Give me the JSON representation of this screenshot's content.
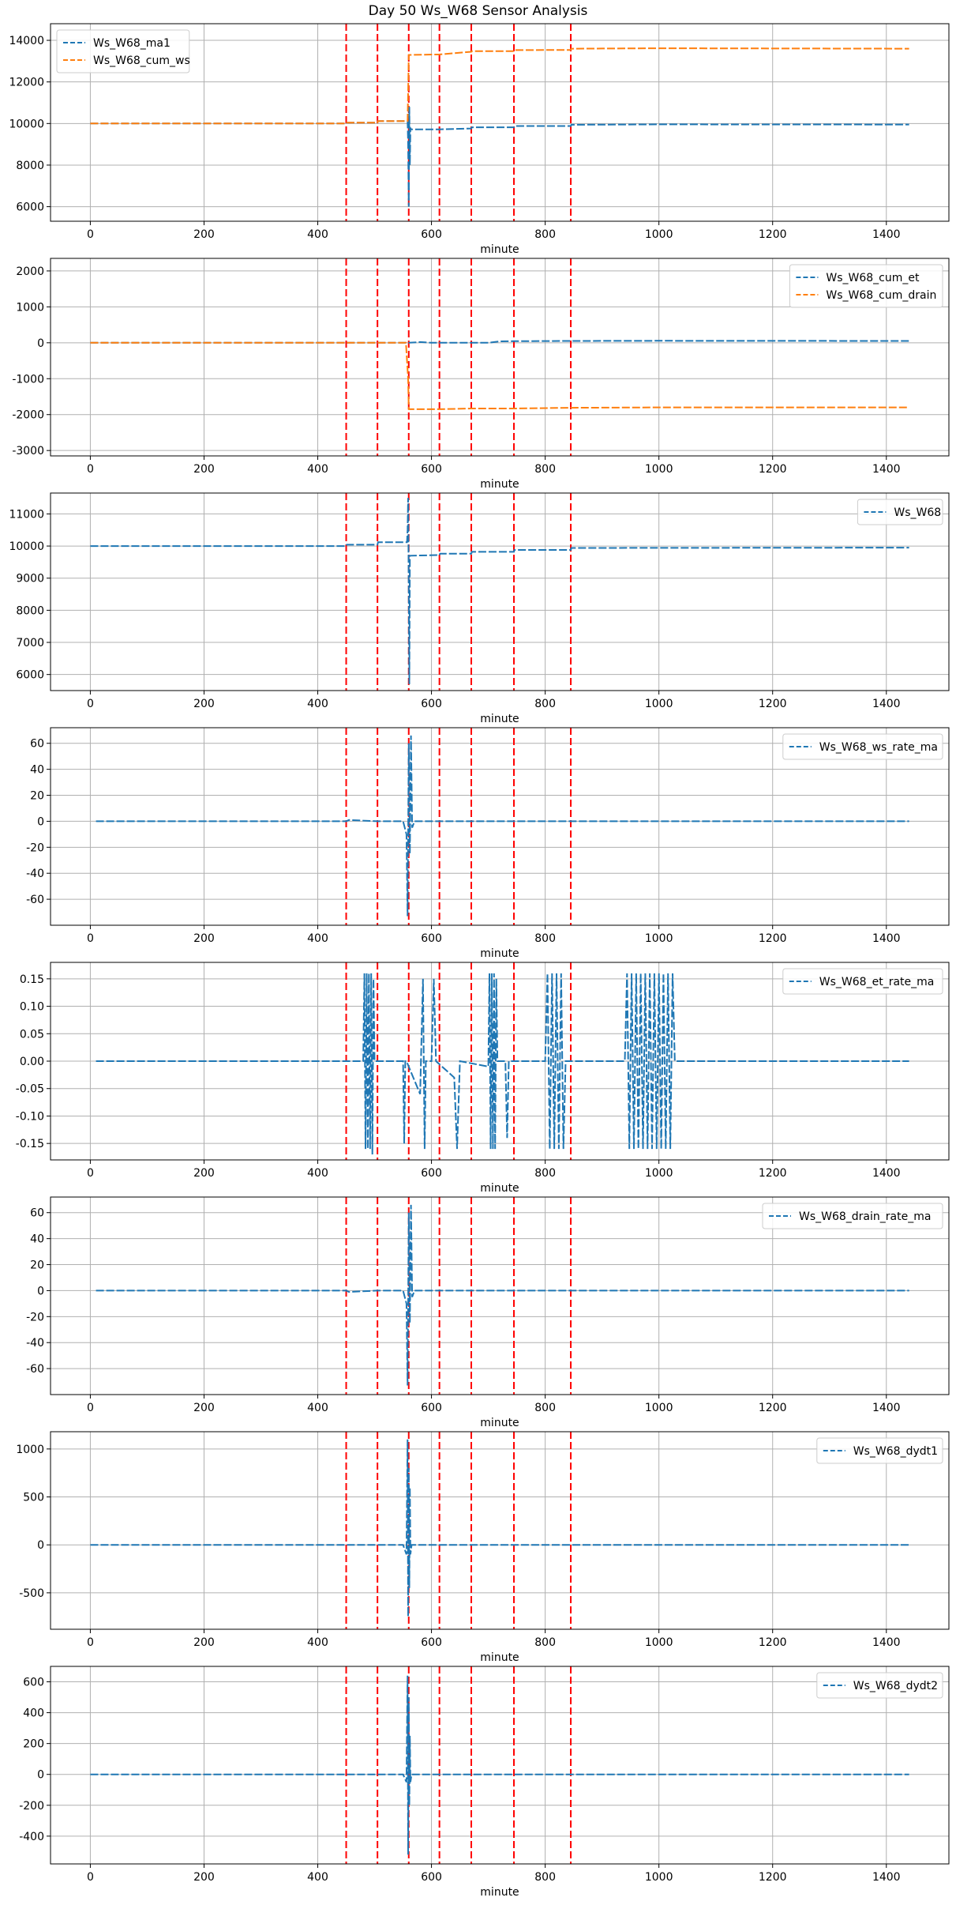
{
  "figure": {
    "title": "Day 50 Ws_W68 Sensor Analysis"
  },
  "colors": {
    "blue": "#1f77b4",
    "orange": "#ff7f0e",
    "event_line": "#ff0000",
    "grid": "#b0b0b0"
  },
  "chart_data": [
    {
      "type": "line",
      "xlabel": "minute",
      "xlim": [
        -70,
        1510
      ],
      "ylim": [
        5300,
        14800
      ],
      "xticks": [
        0,
        200,
        400,
        600,
        800,
        1000,
        1200,
        1400
      ],
      "yticks": [
        6000,
        8000,
        10000,
        12000,
        14000
      ],
      "legend_position": "top-left",
      "grid": true,
      "event_lines": [
        450,
        505,
        560,
        614,
        670,
        745,
        845
      ],
      "series": [
        {
          "name": "Ws_W68_ma1",
          "color": "#1f77b4",
          "style": "dashed",
          "points": [
            [
              0,
              10000
            ],
            [
              450,
              10000
            ],
            [
              451,
              10040
            ],
            [
              505,
              10040
            ],
            [
              506,
              10120
            ],
            [
              558,
              10120
            ],
            [
              559,
              9000
            ],
            [
              560,
              6000
            ],
            [
              561,
              10800
            ],
            [
              562,
              8000
            ],
            [
              563,
              9800
            ],
            [
              564,
              9720
            ],
            [
              614,
              9720
            ],
            [
              670,
              9760
            ],
            [
              671,
              9820
            ],
            [
              745,
              9820
            ],
            [
              746,
              9880
            ],
            [
              845,
              9880
            ],
            [
              846,
              9940
            ],
            [
              1000,
              9960
            ],
            [
              1440,
              9950
            ]
          ]
        },
        {
          "name": "Ws_W68_cum_ws",
          "color": "#ff7f0e",
          "style": "dashed",
          "points": [
            [
              0,
              10000
            ],
            [
              450,
              10000
            ],
            [
              451,
              10040
            ],
            [
              505,
              10040
            ],
            [
              506,
              10120
            ],
            [
              558,
              10120
            ],
            [
              559,
              11500
            ],
            [
              560,
              13300
            ],
            [
              614,
              13320
            ],
            [
              670,
              13450
            ],
            [
              671,
              13480
            ],
            [
              745,
              13480
            ],
            [
              746,
              13530
            ],
            [
              845,
              13540
            ],
            [
              846,
              13600
            ],
            [
              1000,
              13620
            ],
            [
              1440,
              13600
            ]
          ]
        }
      ]
    },
    {
      "type": "line",
      "xlabel": "minute",
      "xlim": [
        -70,
        1510
      ],
      "ylim": [
        -3150,
        2350
      ],
      "xticks": [
        0,
        200,
        400,
        600,
        800,
        1000,
        1200,
        1400
      ],
      "yticks": [
        -3000,
        -2000,
        -1000,
        0,
        1000,
        2000
      ],
      "legend_position": "top-right",
      "grid": true,
      "event_lines": [
        450,
        505,
        560,
        614,
        670,
        745,
        845
      ],
      "series": [
        {
          "name": "Ws_W68_cum_et",
          "color": "#1f77b4",
          "style": "dashed",
          "points": [
            [
              0,
              0
            ],
            [
              560,
              0
            ],
            [
              580,
              20
            ],
            [
              600,
              0
            ],
            [
              700,
              0
            ],
            [
              720,
              40
            ],
            [
              745,
              45
            ],
            [
              845,
              50
            ],
            [
              1000,
              55
            ],
            [
              1440,
              50
            ]
          ]
        },
        {
          "name": "Ws_W68_cum_drain",
          "color": "#ff7f0e",
          "style": "dashed",
          "points": [
            [
              0,
              0
            ],
            [
              555,
              0
            ],
            [
              559,
              -1000
            ],
            [
              560,
              -1850
            ],
            [
              614,
              -1850
            ],
            [
              670,
              -1830
            ],
            [
              745,
              -1830
            ],
            [
              845,
              -1810
            ],
            [
              1000,
              -1800
            ],
            [
              1440,
              -1800
            ]
          ]
        }
      ]
    },
    {
      "type": "line",
      "xlabel": "minute",
      "xlim": [
        -70,
        1510
      ],
      "ylim": [
        5500,
        11650
      ],
      "xticks": [
        0,
        200,
        400,
        600,
        800,
        1000,
        1200,
        1400
      ],
      "yticks": [
        6000,
        7000,
        8000,
        9000,
        10000,
        11000
      ],
      "legend_position": "top-right",
      "grid": true,
      "event_lines": [
        450,
        505,
        560,
        614,
        670,
        745,
        845
      ],
      "series": [
        {
          "name": "Ws_W68",
          "color": "#1f77b4",
          "style": "dashed",
          "points": [
            [
              0,
              10000
            ],
            [
              450,
              10000
            ],
            [
              451,
              10040
            ],
            [
              505,
              10040
            ],
            [
              506,
              10120
            ],
            [
              557,
              10120
            ],
            [
              558,
              10500
            ],
            [
              559,
              11500
            ],
            [
              560,
              8500
            ],
            [
              561,
              5700
            ],
            [
              562,
              9700
            ],
            [
              614,
              9720
            ],
            [
              615,
              9760
            ],
            [
              670,
              9760
            ],
            [
              671,
              9820
            ],
            [
              745,
              9820
            ],
            [
              746,
              9880
            ],
            [
              845,
              9880
            ],
            [
              846,
              9940
            ],
            [
              1440,
              9950
            ]
          ]
        }
      ]
    },
    {
      "type": "line",
      "xlabel": "minute",
      "xlim": [
        -70,
        1510
      ],
      "ylim": [
        -80,
        72
      ],
      "xticks": [
        0,
        200,
        400,
        600,
        800,
        1000,
        1200,
        1400
      ],
      "yticks": [
        -60,
        -40,
        -20,
        0,
        20,
        40,
        60
      ],
      "legend_position": "top-right",
      "grid": true,
      "event_lines": [
        450,
        505,
        560,
        614,
        670,
        745,
        845
      ],
      "series": [
        {
          "name": "Ws_W68_ws_rate_ma",
          "color": "#1f77b4",
          "style": "dashed",
          "points": [
            [
              10,
              0
            ],
            [
              450,
              0
            ],
            [
              455,
              1
            ],
            [
              505,
              0
            ],
            [
              550,
              0
            ],
            [
              556,
              -10
            ],
            [
              558,
              -73
            ],
            [
              560,
              60
            ],
            [
              562,
              -25
            ],
            [
              564,
              66
            ],
            [
              566,
              -5
            ],
            [
              570,
              0
            ],
            [
              1440,
              0
            ]
          ]
        }
      ]
    },
    {
      "type": "line",
      "xlabel": "minute",
      "xlim": [
        -70,
        1510
      ],
      "ylim": [
        -0.18,
        0.18
      ],
      "xticks": [
        0,
        200,
        400,
        600,
        800,
        1000,
        1200,
        1400
      ],
      "yticks": [
        -0.15,
        -0.1,
        -0.05,
        0.0,
        0.05,
        0.1,
        0.15
      ],
      "legend_position": "top-right",
      "grid": true,
      "event_lines": [
        450,
        505,
        560,
        614,
        670,
        745,
        845
      ],
      "series": [
        {
          "name": "Ws_W68_et_rate_ma",
          "color": "#1f77b4",
          "style": "dashed",
          "points": [
            [
              10,
              0
            ],
            [
              480,
              0
            ],
            [
              482,
              0.16
            ],
            [
              484,
              -0.16
            ],
            [
              486,
              0.16
            ],
            [
              488,
              -0.16
            ],
            [
              490,
              0.16
            ],
            [
              492,
              -0.16
            ],
            [
              494,
              0.16
            ],
            [
              496,
              -0.17
            ],
            [
              498,
              0.15
            ],
            [
              500,
              0
            ],
            [
              550,
              0
            ],
            [
              552,
              -0.15
            ],
            [
              554,
              0
            ],
            [
              556,
              0
            ],
            [
              580,
              -0.06
            ],
            [
              585,
              0.15
            ],
            [
              588,
              -0.16
            ],
            [
              590,
              0
            ],
            [
              600,
              0
            ],
            [
              604,
              0.15
            ],
            [
              608,
              0
            ],
            [
              640,
              -0.03
            ],
            [
              645,
              -0.16
            ],
            [
              650,
              0
            ],
            [
              700,
              -0.01
            ],
            [
              702,
              0.16
            ],
            [
              704,
              -0.16
            ],
            [
              706,
              0.16
            ],
            [
              708,
              -0.16
            ],
            [
              710,
              0.16
            ],
            [
              712,
              -0.16
            ],
            [
              714,
              0.15
            ],
            [
              716,
              0
            ],
            [
              730,
              0
            ],
            [
              733,
              -0.14
            ],
            [
              736,
              0
            ],
            [
              800,
              0
            ],
            [
              804,
              0.16
            ],
            [
              808,
              -0.16
            ],
            [
              812,
              0.16
            ],
            [
              816,
              -0.16
            ],
            [
              820,
              0.16
            ],
            [
              824,
              -0.16
            ],
            [
              828,
              0.16
            ],
            [
              832,
              -0.16
            ],
            [
              836,
              0
            ],
            [
              940,
              0
            ],
            [
              944,
              0.16
            ],
            [
              948,
              -0.16
            ],
            [
              952,
              0.16
            ],
            [
              956,
              -0.16
            ],
            [
              960,
              0.16
            ],
            [
              964,
              -0.16
            ],
            [
              968,
              0.16
            ],
            [
              972,
              -0.16
            ],
            [
              976,
              0.16
            ],
            [
              980,
              -0.16
            ],
            [
              984,
              0.16
            ],
            [
              988,
              -0.16
            ],
            [
              992,
              0.16
            ],
            [
              996,
              -0.16
            ],
            [
              1000,
              0.16
            ],
            [
              1004,
              -0.16
            ],
            [
              1008,
              0.16
            ],
            [
              1012,
              -0.16
            ],
            [
              1016,
              0.16
            ],
            [
              1020,
              -0.16
            ],
            [
              1024,
              0.16
            ],
            [
              1028,
              0
            ],
            [
              1440,
              0
            ]
          ]
        }
      ]
    },
    {
      "type": "line",
      "xlabel": "minute",
      "xlim": [
        -70,
        1510
      ],
      "ylim": [
        -80,
        72
      ],
      "xticks": [
        0,
        200,
        400,
        600,
        800,
        1000,
        1200,
        1400
      ],
      "yticks": [
        -60,
        -40,
        -20,
        0,
        20,
        40,
        60
      ],
      "legend_position": "top-right",
      "grid": true,
      "event_lines": [
        450,
        505,
        560,
        614,
        670,
        745,
        845
      ],
      "series": [
        {
          "name": "Ws_W68_drain_rate_ma",
          "color": "#1f77b4",
          "style": "dashed",
          "points": [
            [
              10,
              0
            ],
            [
              450,
              0
            ],
            [
              455,
              -1
            ],
            [
              505,
              0
            ],
            [
              550,
              0
            ],
            [
              556,
              -10
            ],
            [
              558,
              -73
            ],
            [
              560,
              60
            ],
            [
              562,
              -25
            ],
            [
              564,
              66
            ],
            [
              566,
              -5
            ],
            [
              570,
              0
            ],
            [
              1440,
              0
            ]
          ]
        }
      ]
    },
    {
      "type": "line",
      "xlabel": "minute",
      "xlim": [
        -70,
        1510
      ],
      "ylim": [
        -880,
        1180
      ],
      "xticks": [
        0,
        200,
        400,
        600,
        800,
        1000,
        1200,
        1400
      ],
      "yticks": [
        -500,
        0,
        500,
        1000
      ],
      "legend_position": "top-right",
      "grid": true,
      "event_lines": [
        450,
        505,
        560,
        614,
        670,
        745,
        845
      ],
      "series": [
        {
          "name": "Ws_W68_dydt1",
          "color": "#1f77b4",
          "style": "dashed",
          "points": [
            [
              0,
              0
            ],
            [
              550,
              0
            ],
            [
              556,
              -100
            ],
            [
              558,
              1100
            ],
            [
              559,
              -750
            ],
            [
              560,
              800
            ],
            [
              561,
              -450
            ],
            [
              562,
              600
            ],
            [
              563,
              -100
            ],
            [
              565,
              0
            ],
            [
              1440,
              0
            ]
          ]
        }
      ]
    },
    {
      "type": "line",
      "xlabel": "minute",
      "xlim": [
        -70,
        1510
      ],
      "ylim": [
        -580,
        700
      ],
      "xticks": [
        0,
        200,
        400,
        600,
        800,
        1000,
        1200,
        1400
      ],
      "yticks": [
        -400,
        -200,
        0,
        200,
        400,
        600
      ],
      "legend_position": "top-right",
      "grid": true,
      "event_lines": [
        450,
        505,
        560,
        614,
        670,
        745,
        845
      ],
      "series": [
        {
          "name": "Ws_W68_dydt2",
          "color": "#1f77b4",
          "style": "dashed",
          "points": [
            [
              0,
              0
            ],
            [
              550,
              0
            ],
            [
              556,
              -50
            ],
            [
              558,
              640
            ],
            [
              559,
              -520
            ],
            [
              560,
              500
            ],
            [
              561,
              -200
            ],
            [
              562,
              250
            ],
            [
              563,
              -50
            ],
            [
              565,
              0
            ],
            [
              1440,
              0
            ]
          ]
        }
      ]
    }
  ]
}
